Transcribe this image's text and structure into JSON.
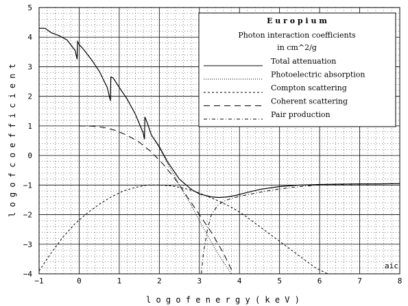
{
  "chart_data": {
    "type": "line",
    "title": "E u r o p i u m",
    "subtitle": "Photon interaction coefficients",
    "units": "in cm^2/g",
    "xlabel": "l o g   o f   e n e r g y   ( k e V )",
    "ylabel": "l o g   o f   c o e f f i c i e n t",
    "annotation": "aic",
    "xlim": [
      -1,
      8
    ],
    "ylim": [
      -4,
      5
    ],
    "xticks": [
      -1,
      0,
      1,
      2,
      3,
      4,
      5,
      6,
      7,
      8
    ],
    "yticks": [
      -4,
      -3,
      -2,
      -1,
      0,
      1,
      2,
      3,
      4,
      5
    ],
    "xtick_labels": [
      "−1",
      "0",
      "1",
      "2",
      "3",
      "4",
      "5",
      "6",
      "7",
      "8"
    ],
    "ytick_labels": [
      "−4",
      "−3",
      "−2",
      "−1",
      "0",
      "1",
      "2",
      "3",
      "4",
      "5"
    ],
    "grid": true,
    "legend_position": "top-right",
    "series": [
      {
        "name": "Total attenuation",
        "dash": "solid",
        "x": [
          -1.0,
          -0.85,
          -0.7,
          -0.5,
          -0.3,
          -0.1,
          -0.05,
          -0.04,
          0.0,
          0.1,
          0.3,
          0.5,
          0.7,
          0.78,
          0.79,
          0.85,
          1.0,
          1.2,
          1.4,
          1.6,
          1.63,
          1.64,
          1.7,
          1.8,
          2.0,
          2.2,
          2.5,
          2.8,
          3.0,
          3.3,
          3.5,
          3.7,
          3.9,
          4.2,
          4.5,
          5.0,
          5.5,
          6.0,
          6.5,
          7.0,
          7.5,
          8.0
        ],
        "y": [
          4.3,
          4.3,
          4.15,
          4.05,
          3.9,
          3.55,
          3.25,
          3.85,
          3.75,
          3.6,
          3.25,
          2.85,
          2.3,
          1.85,
          2.65,
          2.62,
          2.3,
          1.9,
          1.4,
          0.75,
          0.55,
          1.3,
          1.1,
          0.7,
          0.3,
          -0.2,
          -0.8,
          -1.15,
          -1.3,
          -1.4,
          -1.42,
          -1.4,
          -1.35,
          -1.25,
          -1.15,
          -1.05,
          -1.0,
          -0.98,
          -0.97,
          -0.96,
          -0.96,
          -0.95
        ]
      },
      {
        "name": "Photoelectric absorption",
        "dash": "dotted",
        "x": [
          -1.0,
          -0.85,
          -0.7,
          -0.5,
          -0.3,
          -0.1,
          -0.05,
          -0.04,
          0.0,
          0.1,
          0.3,
          0.5,
          0.7,
          0.78,
          0.79,
          0.85,
          1.0,
          1.2,
          1.4,
          1.6,
          1.63,
          1.64,
          1.7,
          1.8,
          2.0,
          2.2,
          2.5,
          2.8,
          3.0,
          3.2,
          3.5,
          3.8
        ],
        "y": [
          4.3,
          4.3,
          4.15,
          4.05,
          3.9,
          3.55,
          3.25,
          3.85,
          3.75,
          3.6,
          3.25,
          2.85,
          2.3,
          1.85,
          2.65,
          2.62,
          2.3,
          1.9,
          1.4,
          0.75,
          0.55,
          1.3,
          1.1,
          0.7,
          0.25,
          -0.25,
          -1.0,
          -1.7,
          -2.2,
          -2.7,
          -3.4,
          -4.0
        ]
      },
      {
        "name": "Compton scattering",
        "dash": "short-dash",
        "x": [
          -1.0,
          -0.7,
          -0.4,
          -0.1,
          0.2,
          0.5,
          0.8,
          1.1,
          1.4,
          1.7,
          2.0,
          2.3,
          2.6,
          2.9,
          3.2,
          3.5,
          3.8,
          4.1,
          4.4,
          4.7,
          5.0,
          5.3,
          5.6,
          5.9,
          6.2
        ],
        "y": [
          -3.9,
          -3.3,
          -2.75,
          -2.3,
          -1.95,
          -1.65,
          -1.4,
          -1.2,
          -1.08,
          -1.0,
          -1.0,
          -1.03,
          -1.1,
          -1.22,
          -1.38,
          -1.55,
          -1.75,
          -2.0,
          -2.3,
          -2.6,
          -2.9,
          -3.2,
          -3.5,
          -3.8,
          -4.0
        ]
      },
      {
        "name": "Coherent scattering",
        "dash": "long-dash",
        "x": [
          0.0,
          0.3,
          0.6,
          0.9,
          1.2,
          1.5,
          1.8,
          2.1,
          2.4,
          2.7,
          3.0,
          3.3,
          3.6,
          3.85
        ],
        "y": [
          1.0,
          0.99,
          0.95,
          0.85,
          0.68,
          0.45,
          0.12,
          -0.3,
          -0.8,
          -1.4,
          -2.0,
          -2.6,
          -3.3,
          -4.0
        ]
      },
      {
        "name": "Pair production",
        "dash": "dash-dot",
        "x": [
          3.05,
          3.1,
          3.2,
          3.3,
          3.45,
          3.6,
          3.8,
          4.0,
          4.3,
          4.6,
          5.0,
          5.5,
          6.0,
          6.5,
          7.0,
          7.5,
          8.0
        ],
        "y": [
          -4.0,
          -3.3,
          -2.5,
          -2.0,
          -1.7,
          -1.55,
          -1.45,
          -1.38,
          -1.3,
          -1.22,
          -1.13,
          -1.05,
          -1.0,
          -0.98,
          -0.97,
          -0.96,
          -0.95
        ]
      }
    ]
  }
}
